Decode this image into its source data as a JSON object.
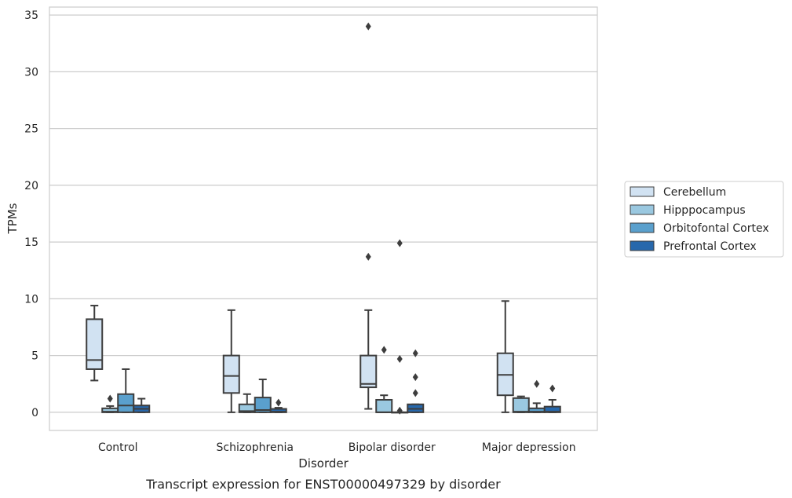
{
  "chart_data": {
    "type": "box",
    "caption": "Transcript expression for ENST00000497329 by disorder",
    "xlabel": "Disorder",
    "ylabel": "TPMs",
    "ylim": [
      -1.6,
      35.7
    ],
    "yticks": [
      0,
      5,
      10,
      15,
      20,
      25,
      30,
      35
    ],
    "grid": true,
    "legend_position": "right",
    "categories": [
      "Control",
      "Schizophrenia",
      "Bipolar disorder",
      "Major depression"
    ],
    "series": [
      {
        "name": "Cerebellum",
        "color": "#d1e2f2",
        "boxes": [
          {
            "whislo": 2.8,
            "q1": 3.8,
            "med": 4.6,
            "q3": 8.2,
            "whishi": 9.4,
            "fliers": []
          },
          {
            "whislo": 0.0,
            "q1": 1.7,
            "med": 3.2,
            "q3": 5.0,
            "whishi": 9.0,
            "fliers": []
          },
          {
            "whislo": 0.3,
            "q1": 2.2,
            "med": 2.5,
            "q3": 5.0,
            "whishi": 9.0,
            "fliers": [
              13.7,
              34.0
            ]
          },
          {
            "whislo": 0.0,
            "q1": 1.5,
            "med": 3.3,
            "q3": 5.2,
            "whishi": 9.8,
            "fliers": []
          }
        ]
      },
      {
        "name": "Hipppocampus",
        "color": "#9ac8e0",
        "boxes": [
          {
            "whislo": 0.0,
            "q1": 0.0,
            "med": 0.05,
            "q3": 0.35,
            "whishi": 0.55,
            "fliers": [
              1.2
            ]
          },
          {
            "whislo": 0.0,
            "q1": 0.0,
            "med": 0.1,
            "q3": 0.7,
            "whishi": 1.6,
            "fliers": []
          },
          {
            "whislo": 0.0,
            "q1": 0.0,
            "med": 0.0,
            "q3": 1.1,
            "whishi": 1.5,
            "fliers": [
              5.5
            ]
          },
          {
            "whislo": 0.0,
            "q1": 0.0,
            "med": 0.05,
            "q3": 1.25,
            "whishi": 1.4,
            "fliers": []
          }
        ]
      },
      {
        "name": "Orbitofontal Cortex",
        "color": "#5aa0cd",
        "boxes": [
          {
            "whislo": 0.0,
            "q1": 0.0,
            "med": 0.6,
            "q3": 1.6,
            "whishi": 3.8,
            "fliers": []
          },
          {
            "whislo": 0.0,
            "q1": 0.0,
            "med": 0.2,
            "q3": 1.3,
            "whishi": 2.9,
            "fliers": []
          },
          {
            "whislo": 0.0,
            "q1": 0.0,
            "med": 0.0,
            "q3": 0.0,
            "whishi": 0.0,
            "fliers": [
              0.15,
              4.7,
              14.9
            ]
          },
          {
            "whislo": 0.0,
            "q1": 0.0,
            "med": 0.05,
            "q3": 0.35,
            "whishi": 0.8,
            "fliers": [
              2.5
            ]
          }
        ]
      },
      {
        "name": "Prefrontal Cortex",
        "color": "#2768ac",
        "boxes": [
          {
            "whislo": 0.0,
            "q1": 0.0,
            "med": 0.3,
            "q3": 0.6,
            "whishi": 1.2,
            "fliers": []
          },
          {
            "whislo": 0.0,
            "q1": 0.0,
            "med": 0.05,
            "q3": 0.3,
            "whishi": 0.4,
            "fliers": [
              0.85
            ]
          },
          {
            "whislo": 0.0,
            "q1": 0.0,
            "med": 0.3,
            "q3": 0.7,
            "whishi": 0.7,
            "fliers": [
              1.7,
              3.1,
              5.2
            ]
          },
          {
            "whislo": 0.0,
            "q1": 0.0,
            "med": 0.05,
            "q3": 0.5,
            "whishi": 1.1,
            "fliers": [
              2.1
            ]
          }
        ]
      }
    ]
  }
}
